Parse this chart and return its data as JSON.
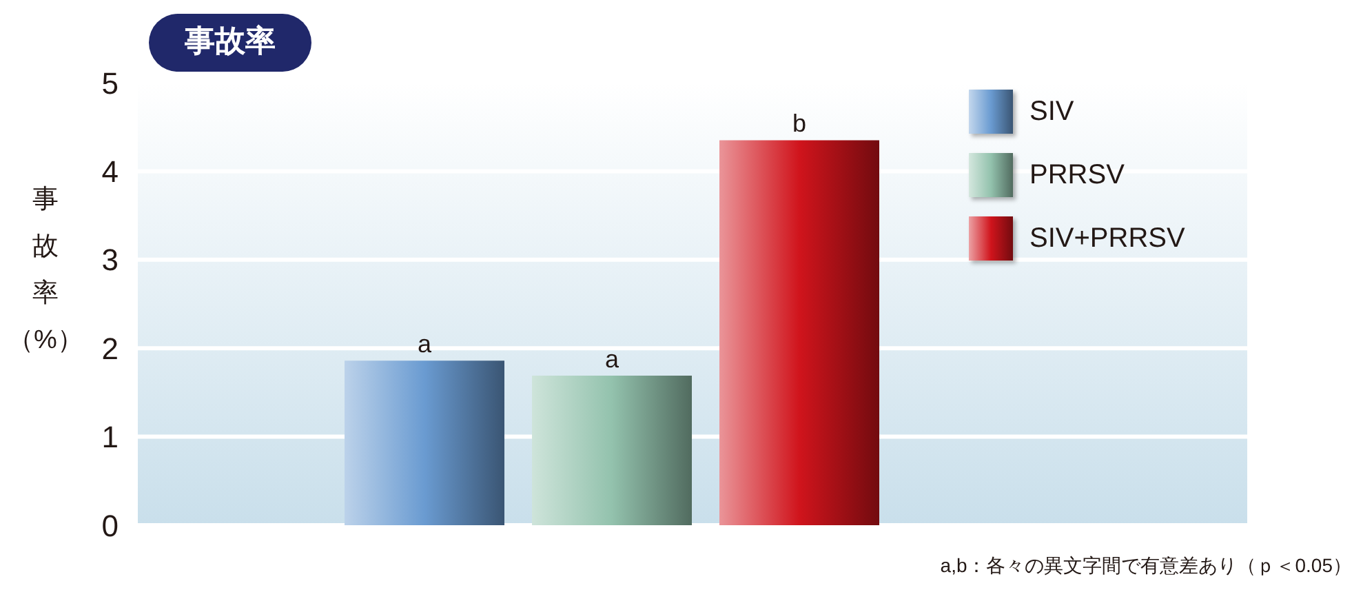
{
  "chart_data": {
    "type": "bar",
    "title": "事故率",
    "ylabel": "事故率（%）",
    "categories": [
      null
    ],
    "series": [
      {
        "name": "SIV",
        "color": "#6a9bd1",
        "values": [
          1.86
        ]
      },
      {
        "name": "PRRSV",
        "color": "#93c2ad",
        "values": [
          1.69
        ]
      },
      {
        "name": "SIV+PRRSV",
        "color": "#d0141c",
        "values": [
          4.35
        ]
      }
    ],
    "ylim": [
      0,
      5
    ],
    "yticks": [
      0,
      1,
      2,
      3,
      4,
      5
    ],
    "grid": "y",
    "legend": "top right",
    "annotations": [
      {
        "text": "a",
        "y": 1.86
      },
      {
        "text": "a",
        "y": 1.69
      },
      {
        "text": "b",
        "y": 4.35
      },
      "a,b：各々の異文字間で有意差あり（ｐ＜0.05）"
    ]
  }
}
